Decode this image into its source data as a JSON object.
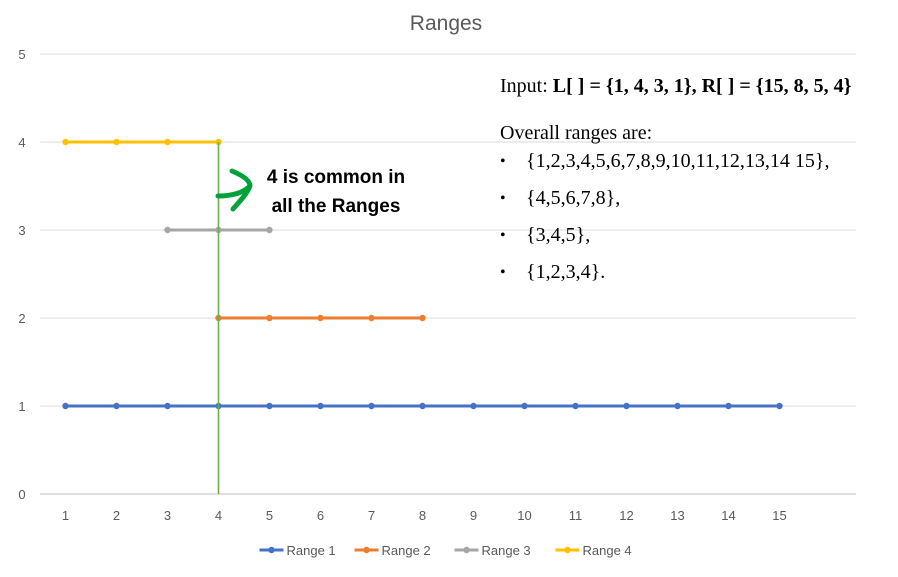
{
  "chart_data": {
    "type": "line",
    "title": "Ranges",
    "x_ticks": [
      1,
      2,
      3,
      4,
      5,
      6,
      7,
      8,
      9,
      10,
      11,
      12,
      13,
      14,
      15
    ],
    "y_ticks": [
      0,
      1,
      2,
      3,
      4,
      5
    ],
    "xlim": [
      0.5,
      16.5
    ],
    "ylim": [
      0,
      5
    ],
    "grid": "horizontal",
    "legend_position": "bottom",
    "series": [
      {
        "name": "Range 1",
        "color": "#4472c4",
        "points": [
          [
            1,
            1
          ],
          [
            2,
            1
          ],
          [
            3,
            1
          ],
          [
            4,
            1
          ],
          [
            5,
            1
          ],
          [
            6,
            1
          ],
          [
            7,
            1
          ],
          [
            8,
            1
          ],
          [
            9,
            1
          ],
          [
            10,
            1
          ],
          [
            11,
            1
          ],
          [
            12,
            1
          ],
          [
            13,
            1
          ],
          [
            14,
            1
          ],
          [
            15,
            1
          ]
        ]
      },
      {
        "name": "Range 2",
        "color": "#ed7d31",
        "points": [
          [
            4,
            2
          ],
          [
            5,
            2
          ],
          [
            6,
            2
          ],
          [
            7,
            2
          ],
          [
            8,
            2
          ]
        ]
      },
      {
        "name": "Range 3",
        "color": "#a5a5a5",
        "points": [
          [
            3,
            3
          ],
          [
            4,
            3
          ],
          [
            5,
            3
          ]
        ]
      },
      {
        "name": "Range 4",
        "color": "#ffc000",
        "points": [
          [
            1,
            4
          ],
          [
            2,
            4
          ],
          [
            3,
            4
          ],
          [
            4,
            4
          ]
        ]
      }
    ],
    "marker_line": {
      "x": 4,
      "color": "#70ad47"
    },
    "annotation": {
      "lines": [
        "4 is common in",
        "all the Ranges"
      ],
      "arrow_color": "#00a33a"
    }
  },
  "info": {
    "input_prefix": "Input: ",
    "input_bold": "L[ ] = {1, 4, 3, 1}, R[ ] = {15, 8, 5, 4}",
    "heading": "Overall ranges are:",
    "ranges": [
      "{1,2,3,4,5,6,7,8,9,10,11,12,13,14 15},",
      "{4,5,6,7,8},",
      "{3,4,5},",
      "{1,2,3,4}."
    ]
  }
}
